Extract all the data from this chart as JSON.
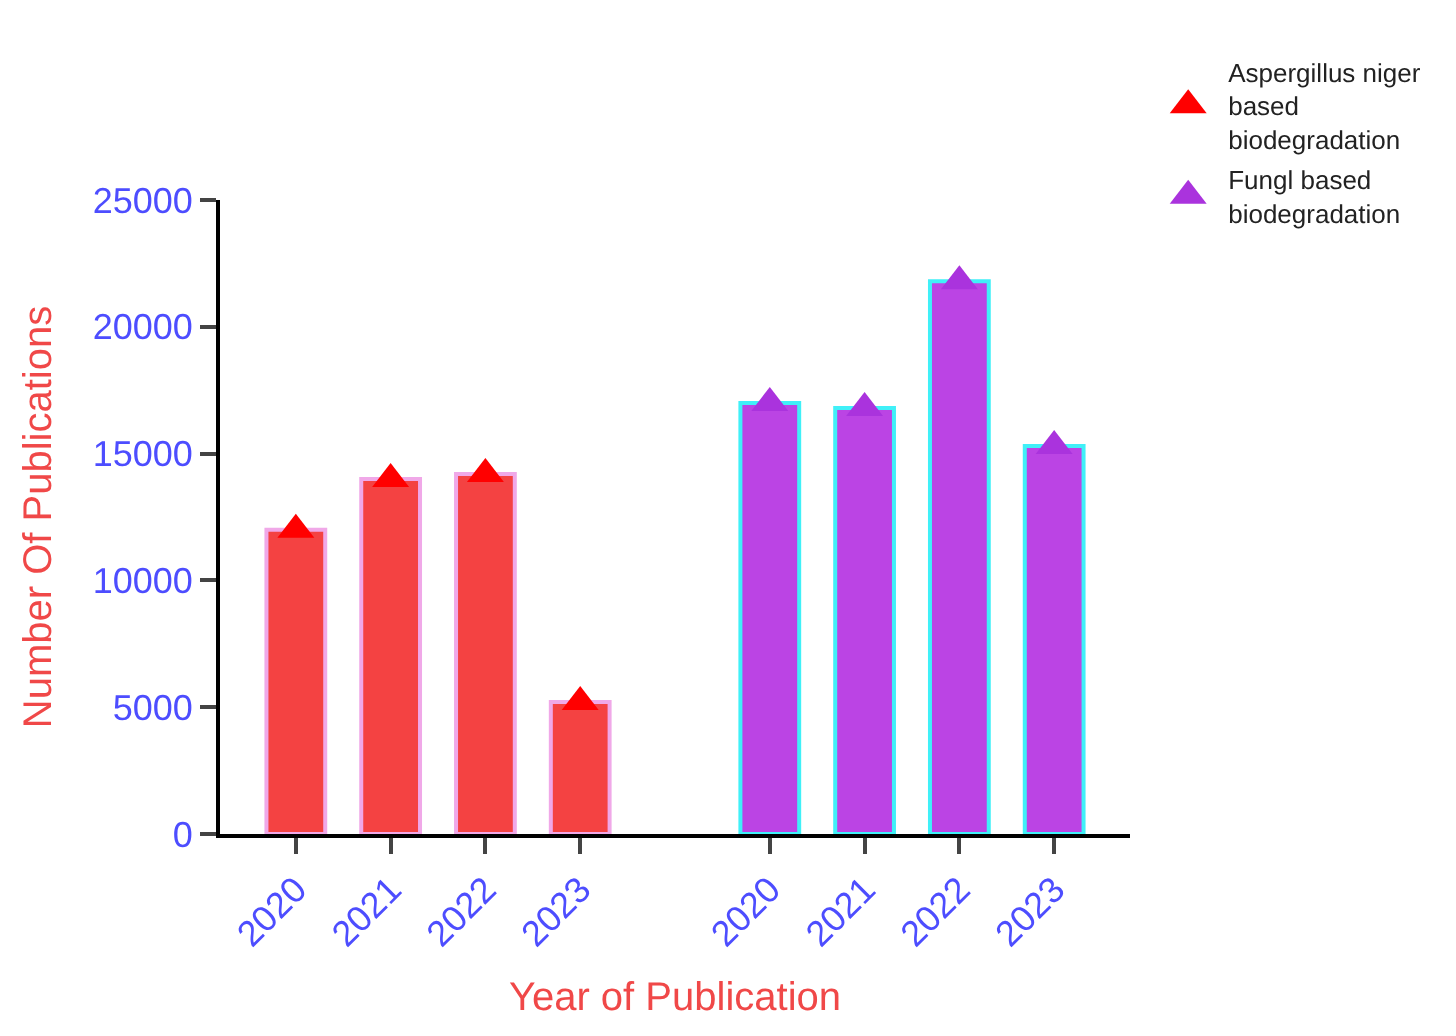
{
  "chart_data": {
    "type": "bar",
    "xlabel": "Year of Publication",
    "ylabel": "Number Of Publications",
    "categories": [
      "2020",
      "2021",
      "2022",
      "2023",
      null,
      "2020",
      "2021",
      "2022",
      "2023"
    ],
    "series": [
      {
        "color": "#f44242",
        "values": [
          12000,
          14000,
          14200,
          5200,
          null,
          null,
          null,
          null,
          null
        ]
      },
      {
        "color": "#bb44e4",
        "values": [
          null,
          null,
          null,
          null,
          null,
          17000,
          16800,
          21800,
          15300
        ]
      },
      {
        "type": "scatter",
        "name": "Aspergillus niger based biodegradation",
        "color": "#ff0000",
        "values": [
          12000,
          14000,
          14200,
          5200,
          null,
          null,
          null,
          null,
          null
        ]
      },
      {
        "type": "scatter",
        "name": "Fungl based biodegradation",
        "color": "#aa33dd",
        "values": [
          null,
          null,
          null,
          null,
          null,
          17000,
          16800,
          21800,
          15300
        ]
      }
    ],
    "marker": "triangle",
    "ylim": [
      0,
      25000
    ],
    "yticks": [
      0,
      5000,
      10000,
      15000,
      20000,
      25000
    ],
    "legend": "top right"
  }
}
